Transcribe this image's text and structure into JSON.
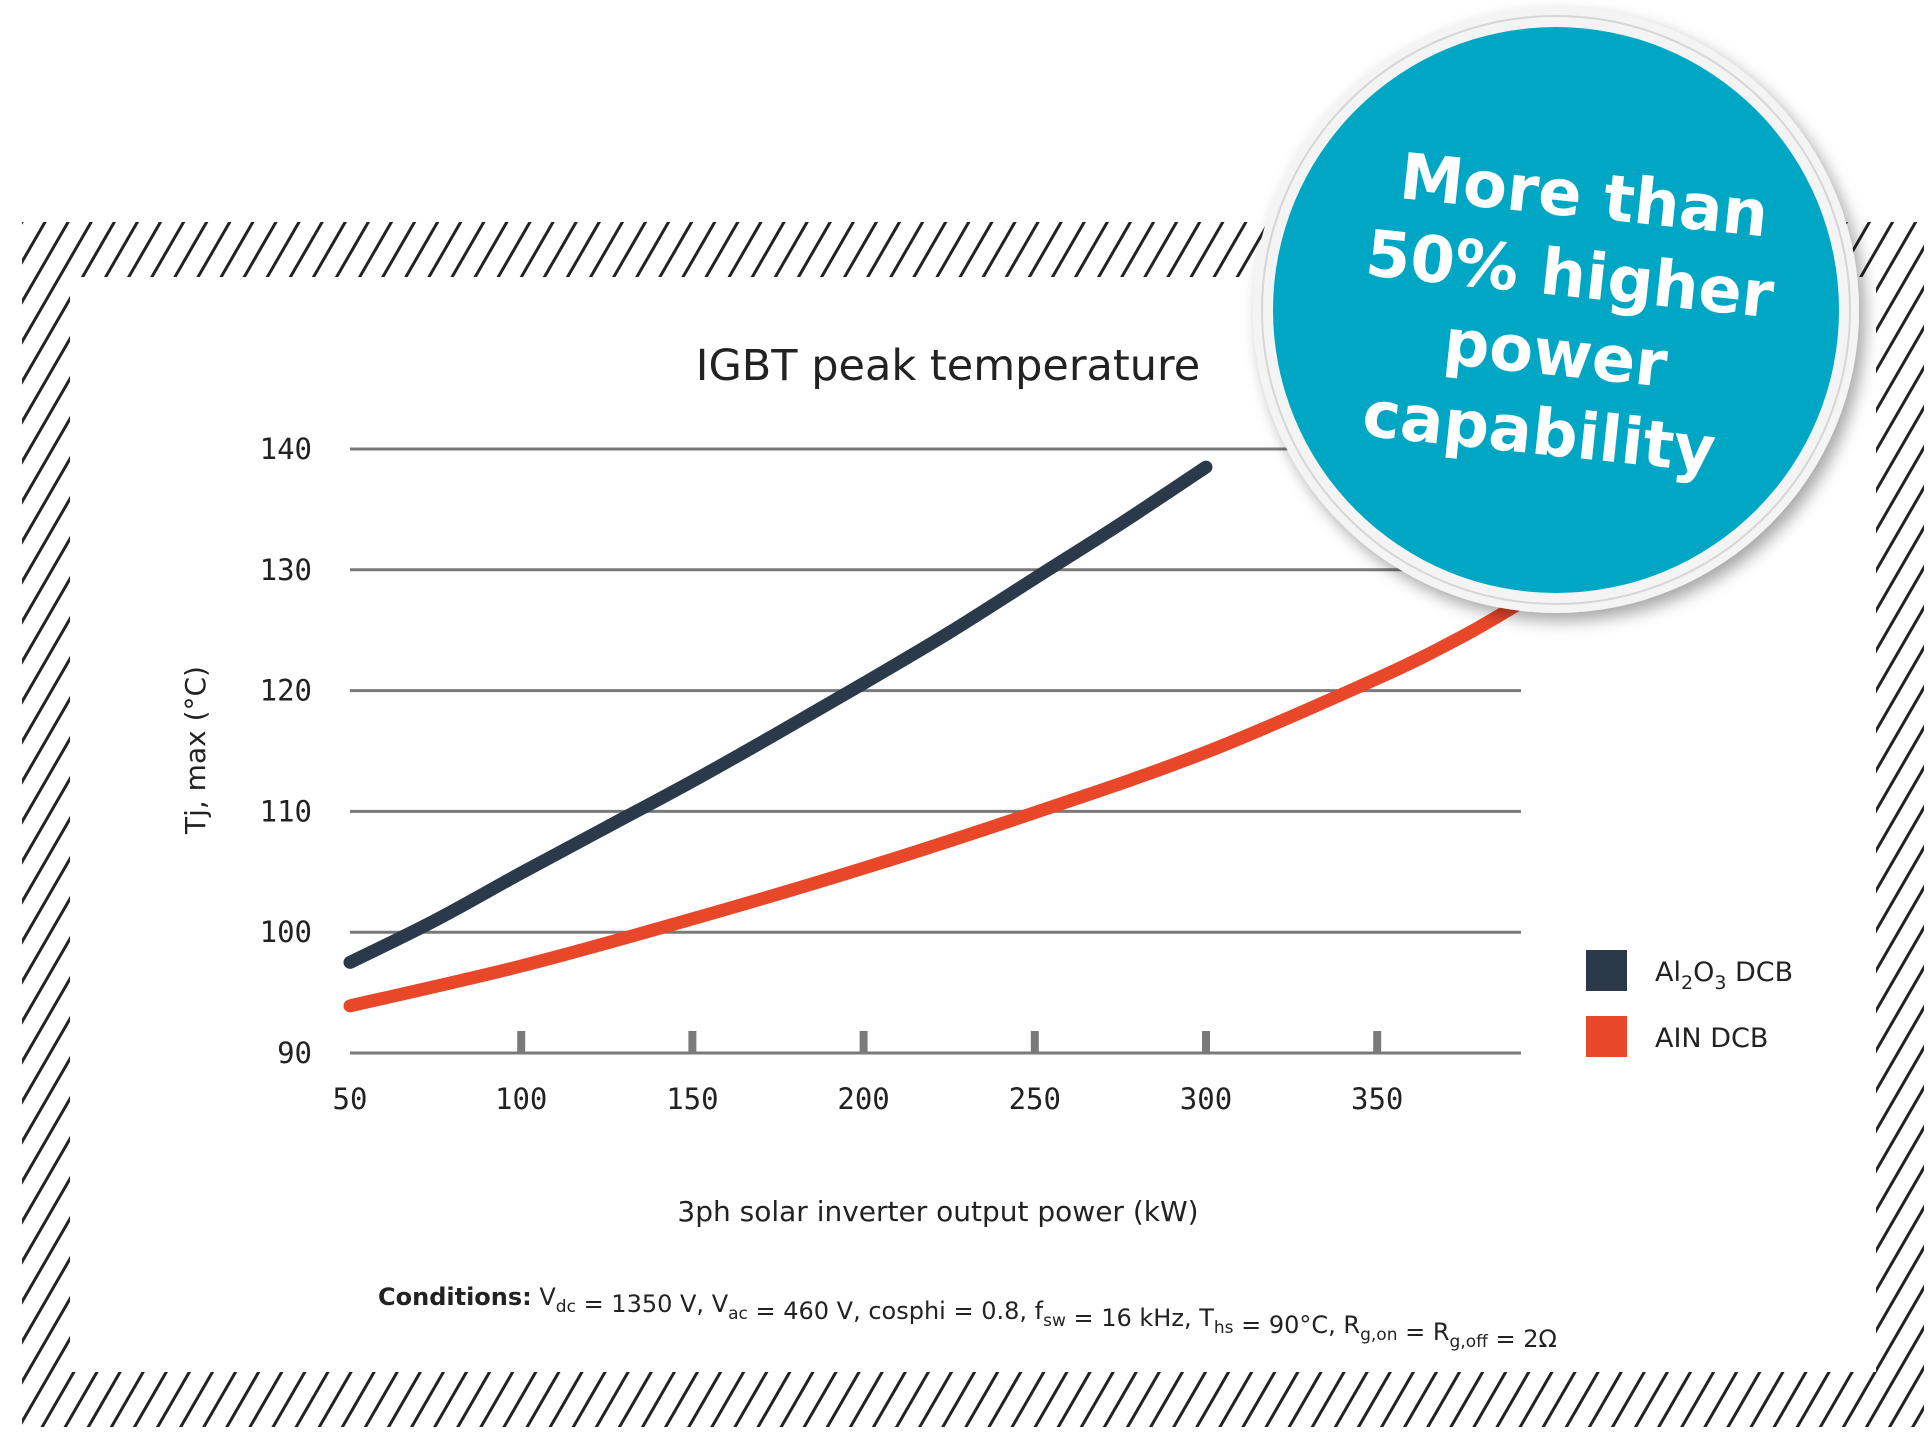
{
  "chart_data": {
    "type": "line",
    "title": "IGBT peak temperature",
    "xlabel": "3ph solar inverter output power (kW)",
    "ylabel": "Tj, max (°C)",
    "xlim": [
      50,
      392
    ],
    "ylim": [
      90,
      140
    ],
    "x_ticks": [
      50,
      100,
      150,
      200,
      250,
      300,
      350
    ],
    "y_ticks": [
      90,
      100,
      110,
      120,
      130,
      140
    ],
    "grid": "horizontal",
    "legend_position": "right",
    "series": [
      {
        "name": "Al2O3 DCB",
        "color": "#2b3a4a",
        "x": [
          50,
          75,
          100,
          125,
          150,
          175,
          200,
          225,
          250,
          275,
          300
        ],
        "y": [
          97.5,
          101,
          104.9,
          108.7,
          112.5,
          116.5,
          120.6,
          124.8,
          129.3,
          133.8,
          138.5
        ]
      },
      {
        "name": "AIN DCB",
        "color": "#e8472a",
        "x": [
          50,
          100,
          150,
          200,
          250,
          300,
          350,
          375,
          392
        ],
        "y": [
          93.9,
          97.2,
          101.1,
          105.3,
          109.9,
          114.9,
          121,
          124.5,
          127.3
        ]
      }
    ],
    "legend": [
      {
        "label_main": "Al",
        "sub1": "2",
        "mid": "O",
        "sub2": "3",
        "rest": " DCB",
        "color": "#2b3a4a"
      },
      {
        "label_main": "AIN DCB",
        "color": "#e8472a"
      }
    ],
    "conditions": {
      "label": "Conditions:",
      "parts": [
        {
          "t": " V"
        },
        {
          "sub": "dc"
        },
        {
          "t": " = 1350 V, V"
        },
        {
          "sub": "ac"
        },
        {
          "t": " = 460 V, cosphi = 0.8, f"
        },
        {
          "sub": "sw"
        },
        {
          "t": " = 16 kHz, T"
        },
        {
          "sub": "hs"
        },
        {
          "t": " = 90°C, R"
        },
        {
          "sub": "g,on"
        },
        {
          "t": " = R"
        },
        {
          "sub": "g,off"
        },
        {
          "t": " = 2Ω"
        }
      ]
    }
  },
  "badge": {
    "lines": [
      "More than",
      "50% higher",
      "power",
      "capability"
    ],
    "color": "#00a7c4"
  },
  "colors": {
    "grid": "#7a7a7a",
    "hatch": "#222222"
  }
}
